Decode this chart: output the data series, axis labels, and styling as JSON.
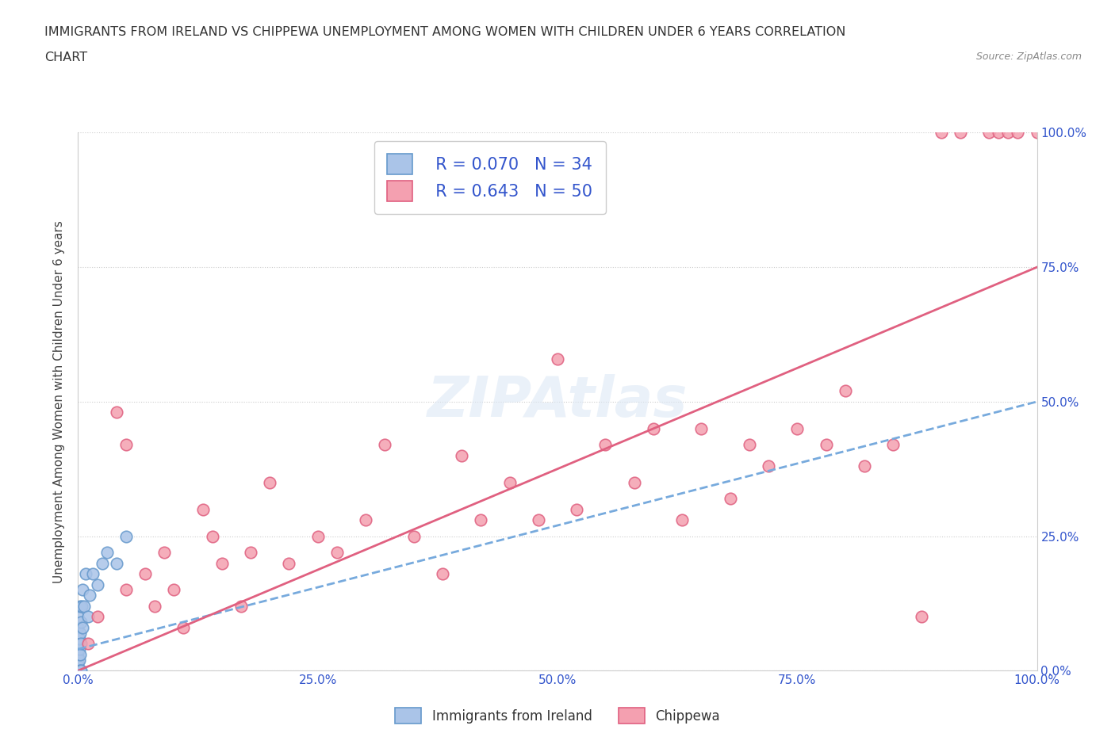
{
  "title_line1": "IMMIGRANTS FROM IRELAND VS CHIPPEWA UNEMPLOYMENT AMONG WOMEN WITH CHILDREN UNDER 6 YEARS CORRELATION",
  "title_line2": "CHART",
  "source": "Source: ZipAtlas.com",
  "ylabel": "Unemployment Among Women with Children Under 6 years",
  "xlim": [
    0.0,
    1.0
  ],
  "ylim": [
    0.0,
    1.0
  ],
  "xtick_labels": [
    "0.0%",
    "25.0%",
    "50.0%",
    "75.0%",
    "100.0%"
  ],
  "xtick_vals": [
    0.0,
    0.25,
    0.5,
    0.75,
    1.0
  ],
  "ytick_labels": [
    "0.0%",
    "25.0%",
    "50.0%",
    "75.0%",
    "100.0%"
  ],
  "ytick_vals": [
    0.0,
    0.25,
    0.5,
    0.75,
    1.0
  ],
  "ireland_color": "#aac4e8",
  "ireland_edge": "#6699cc",
  "chippewa_color": "#f4a0b0",
  "chippewa_edge": "#e06080",
  "ireland_R": 0.07,
  "ireland_N": 34,
  "chippewa_R": 0.643,
  "chippewa_N": 50,
  "ireland_line_x": [
    0.0,
    1.0
  ],
  "ireland_line_y": [
    0.04,
    0.5
  ],
  "chippewa_line_x": [
    0.0,
    1.0
  ],
  "chippewa_line_y": [
    0.0,
    0.75
  ],
  "ireland_scatter_x": [
    0.0,
    0.0,
    0.0,
    0.0,
    0.0,
    0.0,
    0.0,
    0.0,
    0.0,
    0.0,
    0.001,
    0.001,
    0.001,
    0.001,
    0.002,
    0.002,
    0.002,
    0.002,
    0.003,
    0.003,
    0.003,
    0.004,
    0.005,
    0.005,
    0.006,
    0.008,
    0.01,
    0.012,
    0.015,
    0.02,
    0.025,
    0.03,
    0.04,
    0.05
  ],
  "ireland_scatter_y": [
    0.0,
    0.0,
    0.0,
    0.01,
    0.02,
    0.03,
    0.05,
    0.06,
    0.08,
    0.1,
    0.0,
    0.02,
    0.04,
    0.06,
    0.0,
    0.03,
    0.07,
    0.12,
    0.0,
    0.05,
    0.09,
    0.12,
    0.08,
    0.15,
    0.12,
    0.18,
    0.1,
    0.14,
    0.18,
    0.16,
    0.2,
    0.22,
    0.2,
    0.25
  ],
  "chippewa_scatter_x": [
    0.01,
    0.02,
    0.04,
    0.05,
    0.05,
    0.07,
    0.08,
    0.09,
    0.1,
    0.11,
    0.13,
    0.14,
    0.15,
    0.17,
    0.18,
    0.2,
    0.22,
    0.25,
    0.27,
    0.3,
    0.32,
    0.35,
    0.38,
    0.4,
    0.42,
    0.45,
    0.48,
    0.5,
    0.52,
    0.55,
    0.58,
    0.6,
    0.63,
    0.65,
    0.68,
    0.7,
    0.72,
    0.75,
    0.78,
    0.8,
    0.82,
    0.85,
    0.88,
    0.9,
    0.92,
    0.95,
    0.96,
    0.97,
    0.98,
    1.0
  ],
  "chippewa_scatter_y": [
    0.05,
    0.1,
    0.48,
    0.42,
    0.15,
    0.18,
    0.12,
    0.22,
    0.15,
    0.08,
    0.3,
    0.25,
    0.2,
    0.12,
    0.22,
    0.35,
    0.2,
    0.25,
    0.22,
    0.28,
    0.42,
    0.25,
    0.18,
    0.4,
    0.28,
    0.35,
    0.28,
    0.58,
    0.3,
    0.42,
    0.35,
    0.45,
    0.28,
    0.45,
    0.32,
    0.42,
    0.38,
    0.45,
    0.42,
    0.52,
    0.38,
    0.42,
    0.1,
    1.0,
    1.0,
    1.0,
    1.0,
    1.0,
    1.0,
    1.0
  ],
  "legend_color": "#3355cc",
  "background_color": "#ffffff",
  "grid_color": "#cccccc",
  "ireland_legend_label": "Immigrants from Ireland",
  "chippewa_legend_label": "Chippewa"
}
